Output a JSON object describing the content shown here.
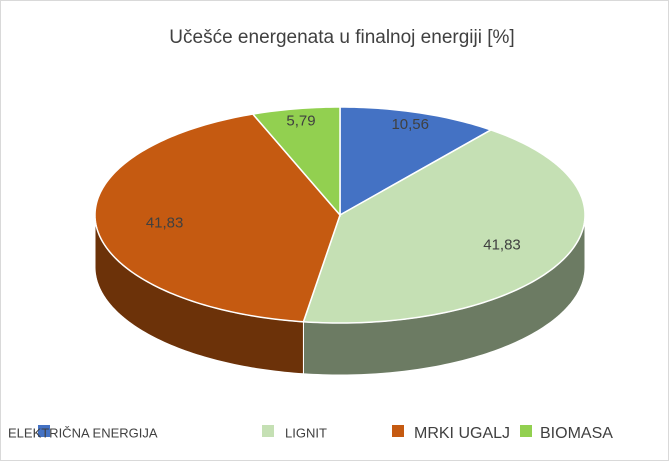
{
  "chart_data": {
    "type": "pie",
    "title": "Učešće energenata u finalnoj energiji [%]",
    "categories": [
      "ELEKTRIČNA ENERGIJA",
      "LIGNIT",
      "MRKI UGALJ",
      "BIOMASA"
    ],
    "values": [
      10.56,
      41.83,
      41.83,
      5.79
    ],
    "value_labels": [
      "10,56",
      "41,83",
      "41,83",
      "5,79"
    ],
    "colors": [
      "#4472c4",
      "#c5e0b4",
      "#c55a11",
      "#92d050"
    ],
    "legend": "bottom"
  }
}
